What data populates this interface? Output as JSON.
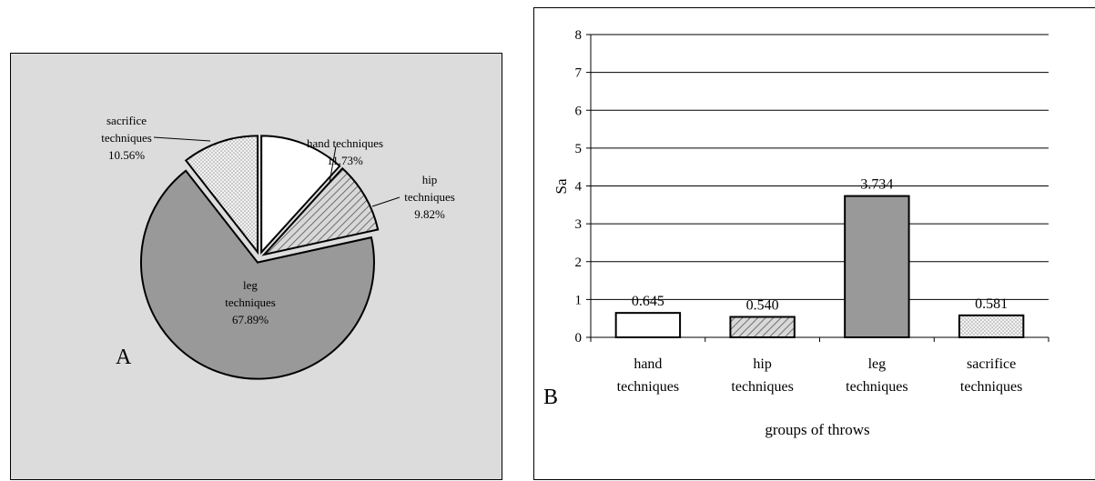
{
  "chart_data": [
    {
      "type": "pie",
      "panel_letter": "A",
      "slices": [
        {
          "label_lines": [
            "hand techniques"
          ],
          "value_label": "11.73%",
          "value": 11.73,
          "fill": "white"
        },
        {
          "label_lines": [
            "hip",
            "techniques"
          ],
          "value_label": "9.82%",
          "value": 9.82,
          "fill": "hatch"
        },
        {
          "label_lines": [
            "leg",
            "techniques"
          ],
          "value_label": "67.89%",
          "value": 67.89,
          "fill": "gray"
        },
        {
          "label_lines": [
            "sacrifice",
            "techniques"
          ],
          "value_label": "10.56%",
          "value": 10.56,
          "fill": "dots"
        }
      ],
      "exploded": true
    },
    {
      "type": "bar",
      "panel_letter": "B",
      "categories": [
        [
          "hand",
          "techniques"
        ],
        [
          "hip",
          "techniques"
        ],
        [
          "leg",
          "techniques"
        ],
        [
          "sacrifice",
          "techniques"
        ]
      ],
      "values": [
        0.645,
        0.54,
        3.734,
        0.581
      ],
      "value_labels": [
        "0.645",
        "0.540",
        "3.734",
        "0.581"
      ],
      "fills": [
        "white",
        "hatch",
        "gray",
        "dots"
      ],
      "ylabel": "Sa",
      "xlabel": "groups of throws",
      "ylim": [
        0,
        8
      ],
      "yticks": [
        "0",
        "1",
        "2",
        "3",
        "4",
        "5",
        "6",
        "7",
        "8"
      ],
      "grid": true
    }
  ],
  "colors": {
    "gray_fill": "#999999",
    "panel_a_bg": "#dcdcdc",
    "white_fill": "#ffffff",
    "hatch_bg": "#d8d8d8",
    "dot_bg": "#f2f2f2"
  }
}
